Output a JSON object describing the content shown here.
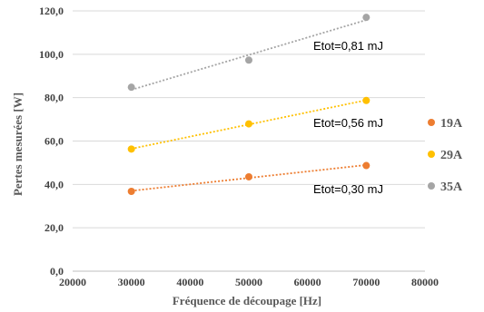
{
  "chart_data": {
    "type": "scatter",
    "xlabel": "Fréquence de découpage [Hz]",
    "ylabel": "Pertes mesurées [W]",
    "xlim": [
      20000,
      80000
    ],
    "ylim": [
      0,
      120
    ],
    "x_ticks": [
      "20000",
      "30000",
      "40000",
      "50000",
      "60000",
      "70000",
      "80000"
    ],
    "y_ticks": [
      "0,0",
      "20,0",
      "40,0",
      "60,0",
      "80,0",
      "100,0",
      "120,0"
    ],
    "grid": "horizontal",
    "legend_position": "right",
    "series": [
      {
        "name": "19A",
        "color": "#ED7D31",
        "trendline": true,
        "x": [
          30000,
          50000,
          70000
        ],
        "y": [
          36.8,
          43.5,
          48.7
        ]
      },
      {
        "name": "29A",
        "color": "#FFC000",
        "trendline": true,
        "x": [
          30000,
          50000,
          70000
        ],
        "y": [
          56.3,
          67.9,
          78.7
        ]
      },
      {
        "name": "35A",
        "color": "#A5A5A5",
        "trendline": true,
        "x": [
          30000,
          50000,
          70000
        ],
        "y": [
          84.8,
          97.3,
          117.0
        ]
      }
    ],
    "annotations": [
      "Etot=0,81 mJ",
      "Etot=0,56 mJ",
      "Etot=0,30 mJ"
    ]
  }
}
